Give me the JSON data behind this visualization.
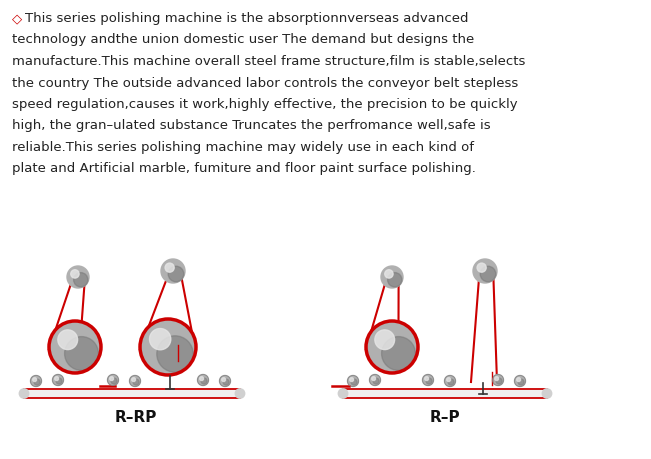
{
  "bg_color": "#ffffff",
  "text_color": "#222222",
  "red_color": "#cc0000",
  "text_line1": "◇This series polishing machine is the absorptionnverseas advanced",
  "text_line2": "technology andthe union domestic user The demand but designs the",
  "text_line3": "manufacture.This machine overall steel frame structure,film is stable,selects",
  "text_line4": "the country The outside advanced labor controls the conveyor belt stepless",
  "text_line5": "speed regulation,causes it work,highly effective, the precision to be quickly",
  "text_line6": "high, the gran–ulated substance Truncates the perfromance well,safe is",
  "text_line7": "reliable.This series polishing machine may widely use in each kind of",
  "text_line8": "plate and Artificial marble, fumiture and floor paint surface polishing.",
  "label_rrp": "R–RP",
  "label_rp": "R–P",
  "figsize": [
    6.51,
    4.6
  ],
  "dpi": 100
}
